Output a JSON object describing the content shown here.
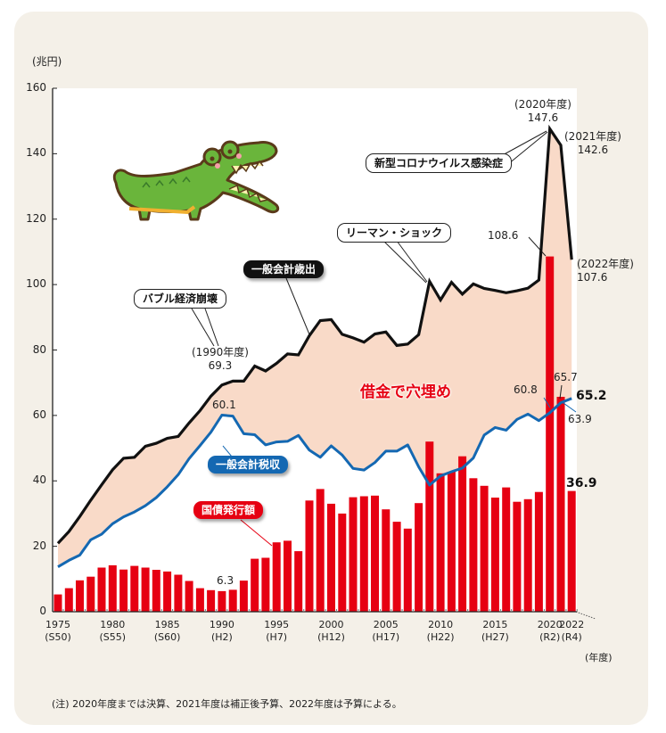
{
  "chart_data": {
    "type": "bar+line",
    "title": "",
    "ylabel": "(兆円)",
    "xlabel": "(年度)",
    "ylim": [
      0,
      160
    ],
    "yticks": [
      0,
      20,
      40,
      60,
      80,
      100,
      120,
      140,
      160
    ],
    "x": [
      1975,
      1976,
      1977,
      1978,
      1979,
      1980,
      1981,
      1982,
      1983,
      1984,
      1985,
      1986,
      1987,
      1988,
      1989,
      1990,
      1991,
      1992,
      1993,
      1994,
      1995,
      1996,
      1997,
      1998,
      1999,
      2000,
      2001,
      2002,
      2003,
      2004,
      2005,
      2006,
      2007,
      2008,
      2009,
      2010,
      2011,
      2012,
      2013,
      2014,
      2015,
      2016,
      2017,
      2018,
      2019,
      2020,
      2021,
      2022
    ],
    "xtick_labels": [
      {
        "year": 1975,
        "label": "1975",
        "era": "(S50)"
      },
      {
        "year": 1980,
        "label": "1980",
        "era": "(S55)"
      },
      {
        "year": 1985,
        "label": "1985",
        "era": "(S60)"
      },
      {
        "year": 1990,
        "label": "1990",
        "era": "(H2)"
      },
      {
        "year": 1995,
        "label": "1995",
        "era": "(H7)"
      },
      {
        "year": 2000,
        "label": "2000",
        "era": "(H12)"
      },
      {
        "year": 2005,
        "label": "2005",
        "era": "(H17)"
      },
      {
        "year": 2010,
        "label": "2010",
        "era": "(H22)"
      },
      {
        "year": 2015,
        "label": "2015",
        "era": "(H27)"
      },
      {
        "year": 2020,
        "label": "2020",
        "era": "(R2)"
      },
      {
        "year": 2022,
        "label": "2022",
        "era": "(R4)"
      }
    ],
    "series": [
      {
        "name": "一般会計歳出",
        "type": "line",
        "color": "#111111",
        "values": [
          20.9,
          24.5,
          29.1,
          34.1,
          38.8,
          43.4,
          46.9,
          47.2,
          50.6,
          51.5,
          53.0,
          53.6,
          57.7,
          61.5,
          65.9,
          69.3,
          70.5,
          70.5,
          75.1,
          73.6,
          75.9,
          78.8,
          78.5,
          84.4,
          89.0,
          89.3,
          84.8,
          83.7,
          82.4,
          84.9,
          85.5,
          81.4,
          81.8,
          84.7,
          101.0,
          95.3,
          100.7,
          97.1,
          100.2,
          98.8,
          98.2,
          97.5,
          98.1,
          98.9,
          101.4,
          147.6,
          142.6,
          107.6
        ]
      },
      {
        "name": "一般会計税収",
        "type": "line",
        "color": "#1468b2",
        "values": [
          13.7,
          15.7,
          17.3,
          22.0,
          23.7,
          26.9,
          29.0,
          30.5,
          32.4,
          34.9,
          38.2,
          41.9,
          46.8,
          50.8,
          54.9,
          60.1,
          59.8,
          54.4,
          54.1,
          51.0,
          51.9,
          52.1,
          53.9,
          49.4,
          47.2,
          50.7,
          47.9,
          43.8,
          43.3,
          45.6,
          49.1,
          49.1,
          51.0,
          44.3,
          38.7,
          41.5,
          42.8,
          43.9,
          47.0,
          54.0,
          56.3,
          55.5,
          58.8,
          60.4,
          58.4,
          60.8,
          63.9,
          65.2
        ]
      },
      {
        "name": "国債発行額",
        "type": "bar",
        "color": "#e60012",
        "values": [
          5.3,
          7.2,
          9.6,
          10.7,
          13.5,
          14.2,
          12.9,
          14.0,
          13.5,
          12.8,
          12.3,
          11.3,
          9.4,
          7.2,
          6.6,
          6.3,
          6.7,
          9.5,
          16.2,
          16.5,
          21.2,
          21.7,
          18.5,
          34.0,
          37.5,
          33.0,
          30.0,
          35.0,
          35.3,
          35.5,
          31.3,
          27.5,
          25.4,
          33.2,
          52.0,
          42.3,
          42.8,
          47.5,
          40.8,
          38.5,
          34.9,
          38.0,
          33.6,
          34.4,
          36.6,
          108.6,
          65.7,
          36.9
        ]
      }
    ],
    "fill_between": {
      "upper": "一般会計歳出",
      "lower": "一般会計税収",
      "color": "#f9dac8",
      "label": "借金で穴埋め"
    },
    "annotations": {
      "y1990_expenditure": {
        "year_label": "(1990年度)",
        "value": "69.3"
      },
      "y1990_tax": {
        "value": "60.1"
      },
      "y1990_bond": {
        "value": "6.3"
      },
      "y2020_expenditure": {
        "year_label": "(2020年度)",
        "value": "147.6"
      },
      "y2021_expenditure": {
        "year_label": "(2021年度)",
        "value": "142.6"
      },
      "y2022_expenditure": {
        "year_label": "(2022年度)",
        "value": "107.6"
      },
      "y2020_bond": {
        "value": "108.6"
      },
      "y2020_tax": {
        "value": "60.8"
      },
      "y2021_bond": {
        "value": "65.7"
      },
      "y2021_tax": {
        "value": "63.9"
      },
      "y2022_tax": {
        "value": "65.2"
      },
      "y2022_bond": {
        "value": "36.9"
      }
    },
    "callouts": {
      "bubble": "バブル経済崩壊",
      "expenditure": "一般会計歳出",
      "lehman": "リーマン・ショック",
      "covid": "新型コロナウイルス感染症",
      "tax": "一般会計税収",
      "bonds": "国債発行額"
    },
    "grid": false,
    "legend": "inline-callouts"
  },
  "note": "(注) 2020年度までは決算、2021年度は補正後予算、2022年度は予算による。",
  "illustration": "crocodile-illustration"
}
